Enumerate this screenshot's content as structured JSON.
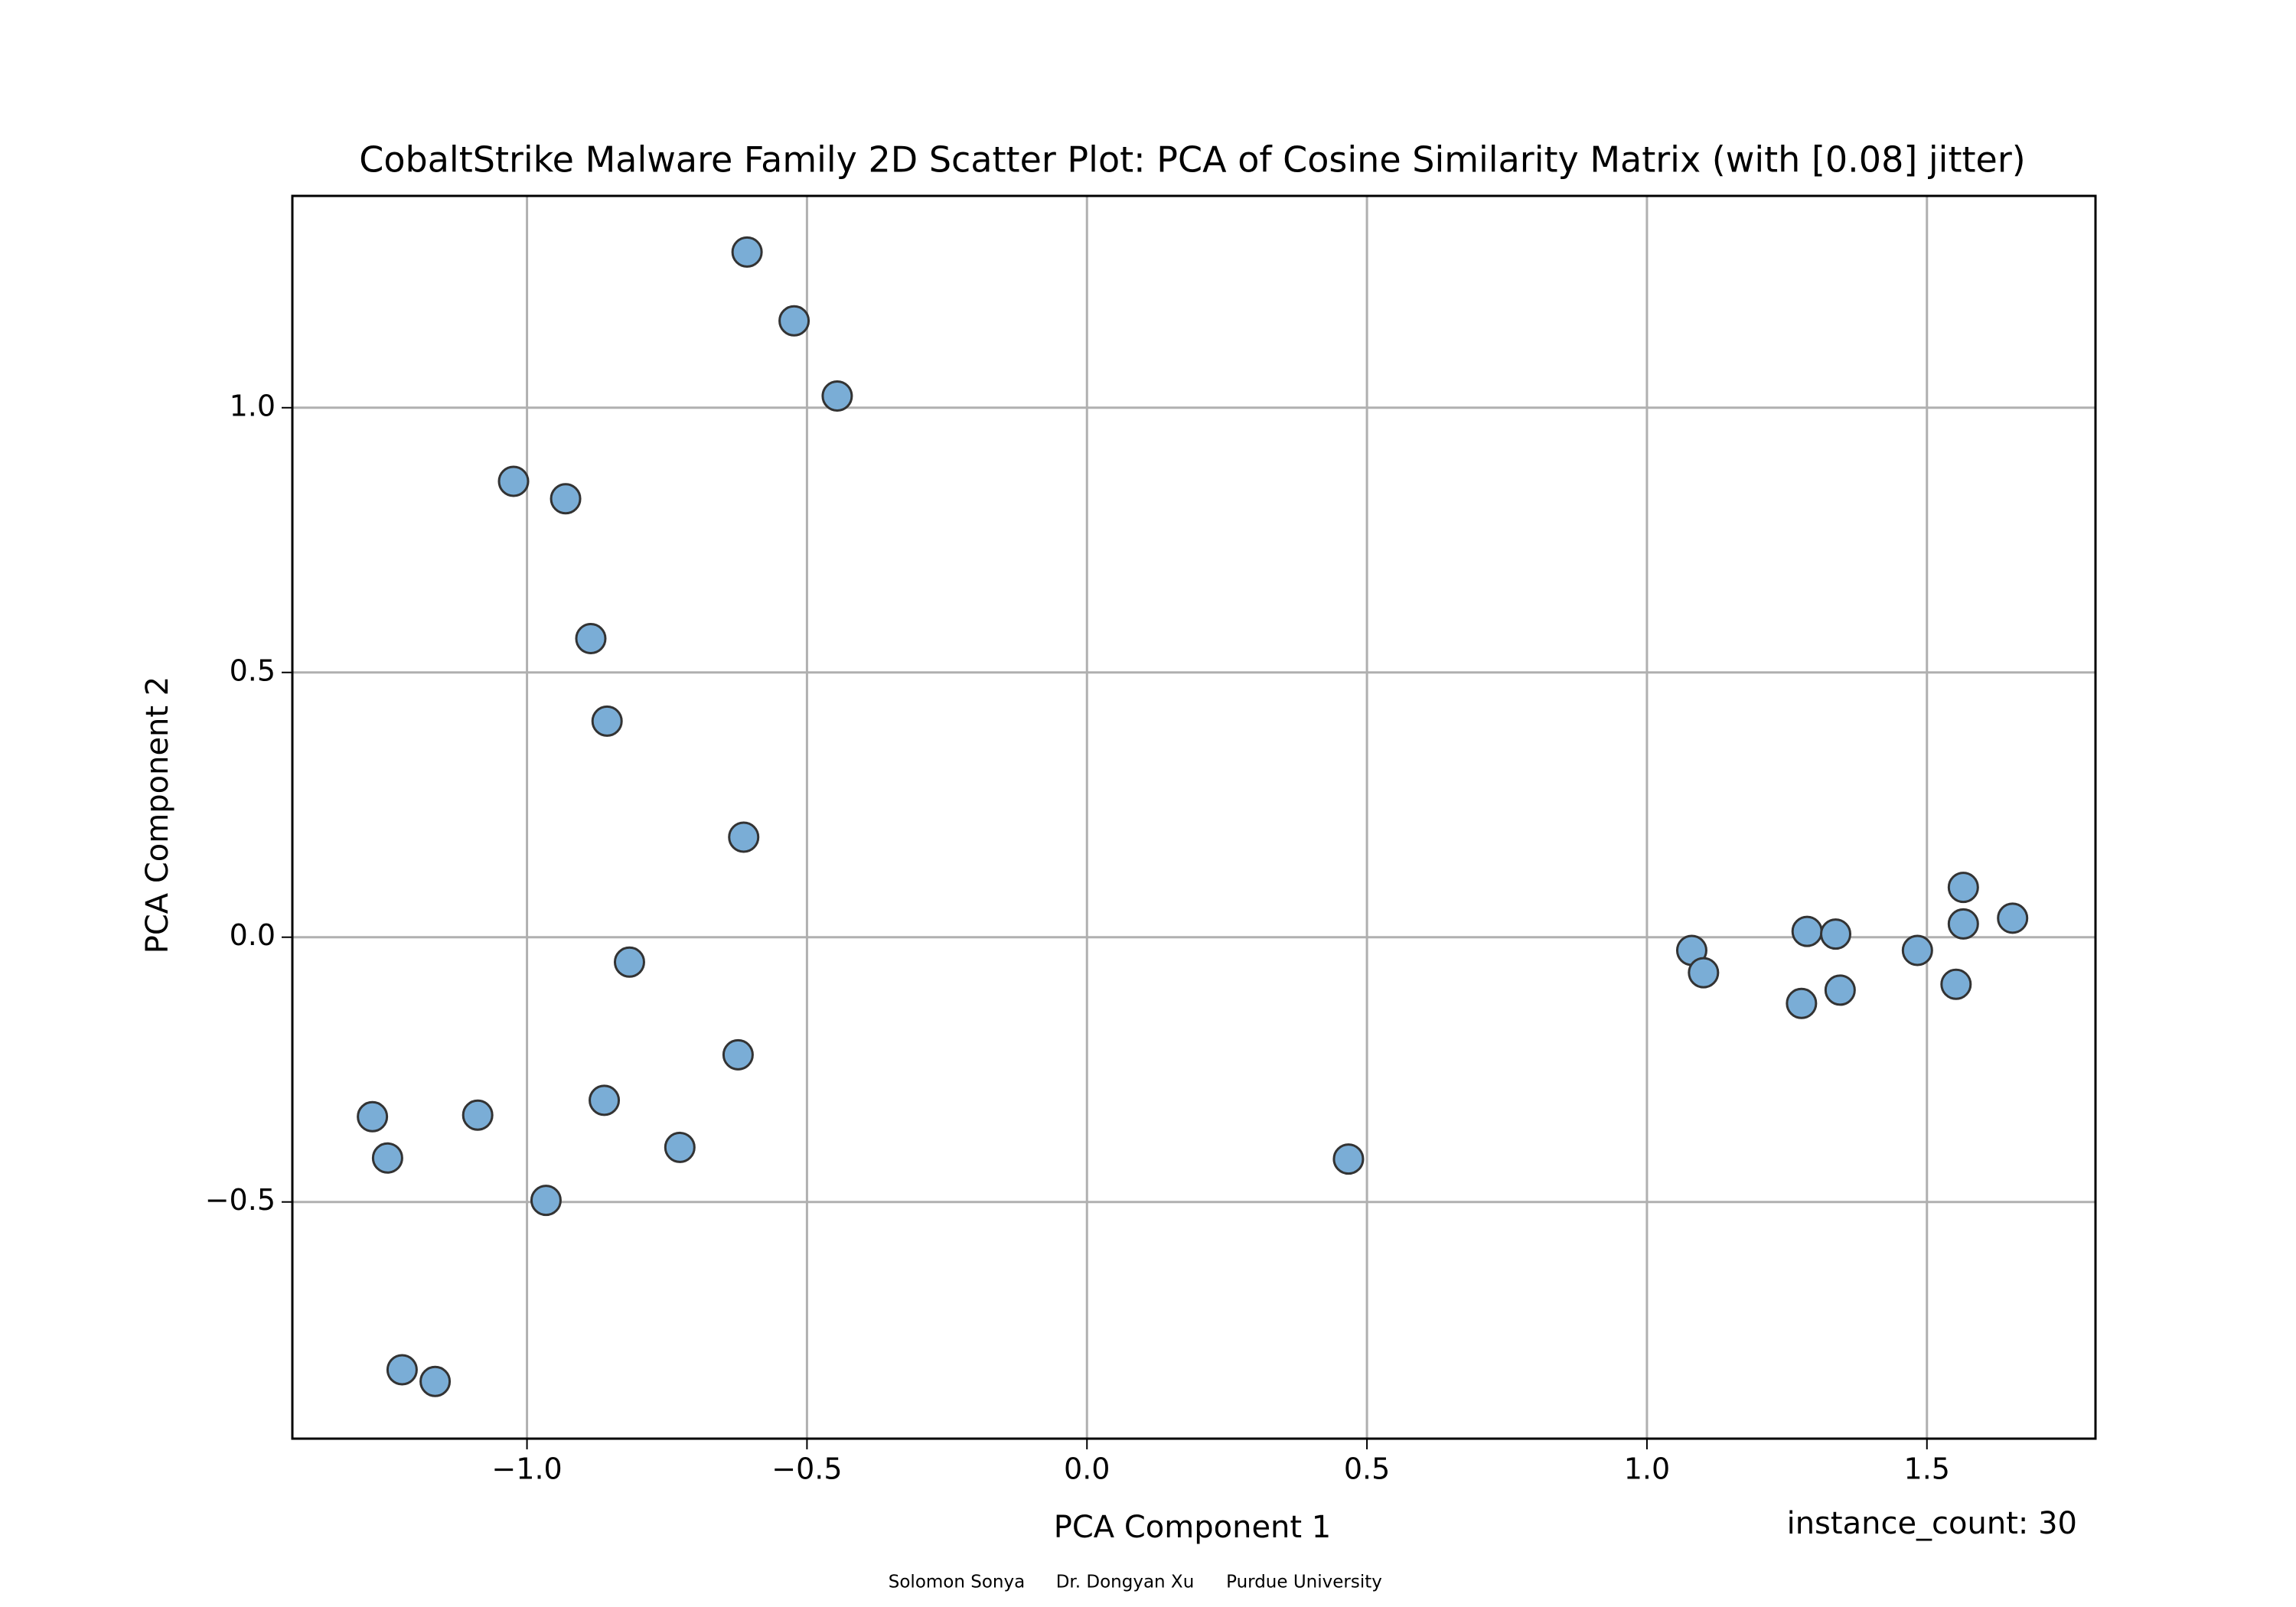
{
  "chart_data": {
    "type": "scatter",
    "title": "CobaltStrike Malware Family 2D Scatter Plot: PCA of Cosine Similarity Matrix (with [0.08] jitter)",
    "xlabel": "PCA Component 1",
    "ylabel": "PCA Component 2",
    "annotation": "instance_count: 30",
    "footer": [
      "Solomon Sonya",
      "Dr. Dongyan Xu",
      "Purdue University"
    ],
    "color": "#7aadd6",
    "edgecolor": "#333333",
    "grid": true,
    "xlim": [
      -1.419,
      1.801
    ],
    "ylim": [
      -0.947,
      1.4
    ],
    "xticks": [
      {
        "value": -1.0,
        "label": "−1.0"
      },
      {
        "value": -0.5,
        "label": "−0.5"
      },
      {
        "value": 0.0,
        "label": "0.0"
      },
      {
        "value": 0.5,
        "label": "0.5"
      },
      {
        "value": 1.0,
        "label": "1.0"
      },
      {
        "value": 1.5,
        "label": "1.5"
      }
    ],
    "yticks": [
      {
        "value": -0.5,
        "label": "−0.5"
      },
      {
        "value": 0.0,
        "label": "0.0"
      },
      {
        "value": 0.5,
        "label": "0.5"
      },
      {
        "value": 1.0,
        "label": "1.0"
      }
    ],
    "x": [
      -0.607,
      -0.523,
      -0.446,
      -1.024,
      -0.931,
      -0.886,
      -0.857,
      -0.613,
      -0.817,
      -0.623,
      -0.862,
      -0.727,
      -1.088,
      -1.276,
      -1.249,
      -0.966,
      -1.223,
      -1.164,
      0.467,
      1.08,
      1.101,
      1.286,
      1.337,
      1.276,
      1.345,
      1.483,
      1.565,
      1.565,
      1.653,
      1.552
    ],
    "y": [
      1.294,
      1.164,
      1.022,
      0.861,
      0.828,
      0.564,
      0.408,
      0.189,
      -0.047,
      -0.222,
      -0.308,
      -0.397,
      -0.336,
      -0.339,
      -0.417,
      -0.497,
      -0.817,
      -0.839,
      -0.419,
      -0.025,
      -0.067,
      0.011,
      0.006,
      -0.125,
      -0.1,
      -0.025,
      0.094,
      0.025,
      0.036,
      -0.089
    ]
  }
}
